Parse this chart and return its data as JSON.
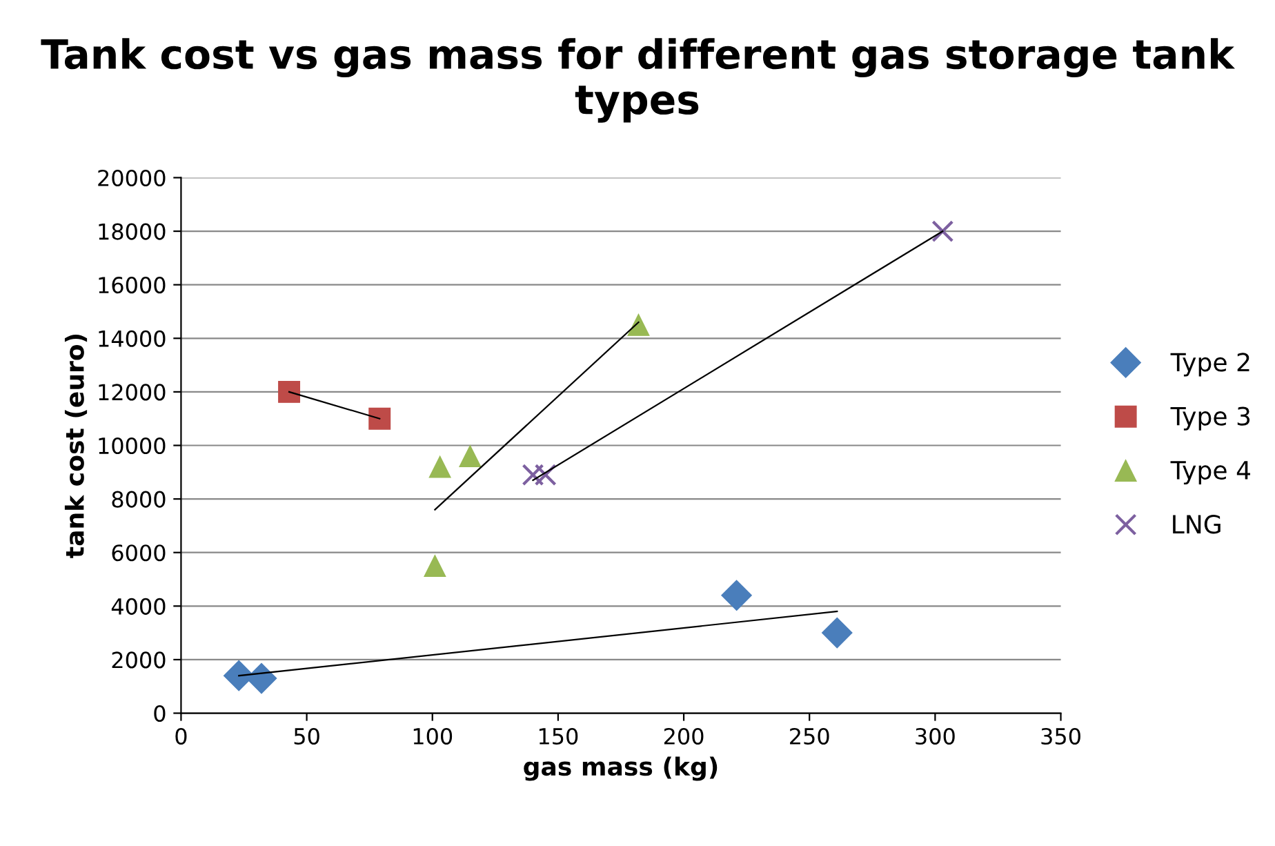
{
  "chart_data": {
    "type": "scatter",
    "title": "Tank cost vs gas mass for different gas storage tank types",
    "xlabel": "gas mass (kg)",
    "ylabel": "tank cost (euro)",
    "xlim": [
      0,
      350
    ],
    "xticks": [
      0,
      50,
      100,
      150,
      200,
      250,
      300,
      350
    ],
    "ylim": [
      0,
      20000
    ],
    "yticks": [
      0,
      2000,
      4000,
      6000,
      8000,
      10000,
      12000,
      14000,
      16000,
      18000,
      20000
    ],
    "grid": "y",
    "legend": "right",
    "series": [
      {
        "name": "Type 2",
        "color": "#4a7ebb",
        "marker": "diamond",
        "x": [
          23,
          32,
          221,
          261
        ],
        "values": [
          1400,
          1300,
          4400,
          3000
        ]
      },
      {
        "name": "Type 3",
        "color": "#be4b48",
        "marker": "square",
        "x": [
          43,
          79
        ],
        "values": [
          12000,
          11000
        ]
      },
      {
        "name": "Type 4",
        "color": "#98b954",
        "marker": "triangle",
        "x": [
          101,
          103,
          115,
          182
        ],
        "values": [
          5500,
          9200,
          9600,
          14500
        ]
      },
      {
        "name": "LNG",
        "color": "#7d60a0",
        "marker": "cross",
        "x": [
          140,
          145,
          303
        ],
        "values": [
          8900,
          8900,
          18000
        ]
      },
      {
        "type": "line",
        "color": "#000000",
        "x": [
          23,
          261
        ],
        "values": [
          1400,
          3800
        ]
      },
      {
        "type": "line",
        "color": "#000000",
        "x": [
          43,
          79
        ],
        "values": [
          12000,
          11000
        ]
      },
      {
        "type": "line",
        "color": "#000000",
        "x": [
          101,
          182
        ],
        "values": [
          7600,
          14600
        ]
      },
      {
        "type": "line",
        "color": "#000000",
        "x": [
          140,
          303
        ],
        "values": [
          8700,
          18000
        ]
      }
    ]
  }
}
